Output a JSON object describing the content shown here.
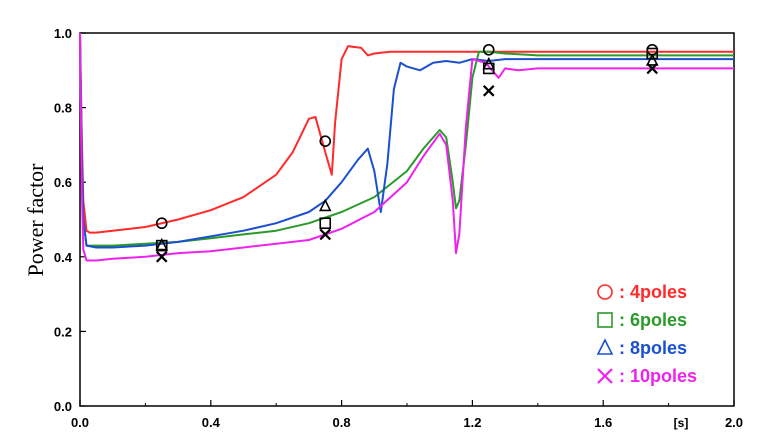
{
  "chart_data": {
    "type": "line",
    "title": "",
    "xlabel": "",
    "x_unit": "[s]",
    "ylabel": "Power factor",
    "xlim": [
      0.0,
      2.0
    ],
    "ylim": [
      0.0,
      1.0
    ],
    "x_ticks": [
      "0.0",
      "0.4",
      "0.8",
      "1.2",
      "1.6",
      "2.0"
    ],
    "y_ticks": [
      "0.0",
      "0.2",
      "0.4",
      "0.6",
      "0.8",
      "1.0"
    ],
    "grid": false,
    "legend_position": "bottom-right",
    "series": [
      {
        "name": ": 4poles",
        "marker": "circle",
        "color": "#ff2a2a",
        "x": [
          0.0,
          0.005,
          0.01,
          0.02,
          0.03,
          0.05,
          0.1,
          0.2,
          0.3,
          0.4,
          0.5,
          0.6,
          0.65,
          0.7,
          0.72,
          0.75,
          0.77,
          0.78,
          0.8,
          0.82,
          0.86,
          0.88,
          0.9,
          0.95,
          1.0,
          1.2,
          1.4,
          1.6,
          1.8,
          2.0
        ],
        "y": [
          1.0,
          0.75,
          0.55,
          0.47,
          0.465,
          0.465,
          0.47,
          0.48,
          0.5,
          0.525,
          0.56,
          0.62,
          0.68,
          0.77,
          0.775,
          0.68,
          0.62,
          0.76,
          0.93,
          0.965,
          0.96,
          0.94,
          0.945,
          0.95,
          0.95,
          0.95,
          0.95,
          0.95,
          0.95,
          0.95
        ],
        "marker_points": [
          [
            0.25,
            0.49
          ],
          [
            0.75,
            0.71
          ],
          [
            1.25,
            0.955
          ],
          [
            1.75,
            0.955
          ]
        ]
      },
      {
        "name": ": 6poles",
        "marker": "square",
        "color": "#2a9a2a",
        "x": [
          0.0,
          0.005,
          0.01,
          0.02,
          0.05,
          0.1,
          0.2,
          0.3,
          0.4,
          0.5,
          0.6,
          0.7,
          0.8,
          0.9,
          1.0,
          1.05,
          1.1,
          1.12,
          1.14,
          1.15,
          1.16,
          1.18,
          1.2,
          1.22,
          1.25,
          1.3,
          1.4,
          2.0
        ],
        "y": [
          1.0,
          0.7,
          0.5,
          0.43,
          0.43,
          0.43,
          0.435,
          0.44,
          0.45,
          0.46,
          0.47,
          0.49,
          0.52,
          0.56,
          0.63,
          0.69,
          0.74,
          0.72,
          0.6,
          0.53,
          0.55,
          0.7,
          0.88,
          0.95,
          0.95,
          0.945,
          0.94,
          0.94
        ],
        "marker_points": [
          [
            0.25,
            0.43
          ],
          [
            0.75,
            0.49
          ],
          [
            1.25,
            0.905
          ],
          [
            1.75,
            0.945
          ]
        ]
      },
      {
        "name": ": 8poles",
        "marker": "triangle",
        "color": "#1a50d0",
        "x": [
          0.0,
          0.005,
          0.01,
          0.02,
          0.05,
          0.1,
          0.2,
          0.3,
          0.4,
          0.5,
          0.6,
          0.7,
          0.75,
          0.8,
          0.85,
          0.88,
          0.9,
          0.92,
          0.94,
          0.96,
          0.98,
          1.0,
          1.04,
          1.08,
          1.12,
          1.16,
          1.2,
          1.25,
          1.3,
          2.0
        ],
        "y": [
          1.0,
          0.7,
          0.5,
          0.43,
          0.425,
          0.425,
          0.43,
          0.44,
          0.455,
          0.47,
          0.49,
          0.52,
          0.55,
          0.6,
          0.66,
          0.69,
          0.63,
          0.52,
          0.65,
          0.85,
          0.92,
          0.91,
          0.9,
          0.92,
          0.925,
          0.92,
          0.93,
          0.925,
          0.93,
          0.93
        ],
        "marker_points": [
          [
            0.25,
            0.43
          ],
          [
            0.75,
            0.535
          ],
          [
            1.25,
            0.915
          ],
          [
            1.75,
            0.925
          ]
        ]
      },
      {
        "name": ": 10poles",
        "marker": "x",
        "color": "#ee22ee",
        "x": [
          0.0,
          0.005,
          0.01,
          0.02,
          0.05,
          0.1,
          0.2,
          0.3,
          0.4,
          0.5,
          0.6,
          0.7,
          0.8,
          0.9,
          1.0,
          1.05,
          1.1,
          1.12,
          1.14,
          1.15,
          1.16,
          1.18,
          1.2,
          1.24,
          1.28,
          1.3,
          1.34,
          1.4,
          2.0
        ],
        "y": [
          1.0,
          0.6,
          0.42,
          0.39,
          0.39,
          0.395,
          0.4,
          0.41,
          0.415,
          0.425,
          0.435,
          0.445,
          0.475,
          0.52,
          0.6,
          0.67,
          0.73,
          0.7,
          0.55,
          0.41,
          0.46,
          0.75,
          0.93,
          0.92,
          0.88,
          0.905,
          0.9,
          0.905,
          0.905
        ],
        "marker_points": [
          [
            0.25,
            0.4
          ],
          [
            0.75,
            0.46
          ],
          [
            1.25,
            0.845
          ],
          [
            1.75,
            0.905
          ]
        ]
      }
    ]
  }
}
